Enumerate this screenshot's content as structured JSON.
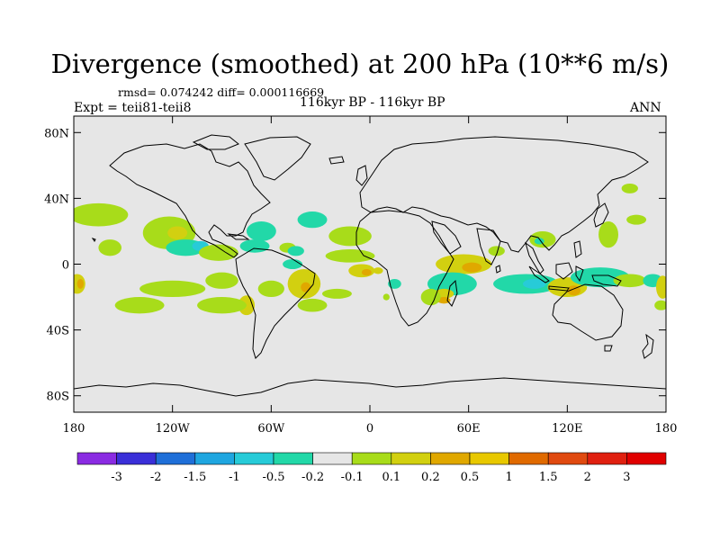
{
  "title": "Divergence (smoothed) at 200 hPa (10**6 m/s)",
  "stats": "rmsd= 0.074242 diff= 0.000116669",
  "experiment": "Expt = teii81-teii8",
  "period": "116kyr BP - 116kyr BP",
  "season": "ANN",
  "map": {
    "background_color": "#e6e6e6",
    "lat_labels": [
      "80N",
      "40N",
      "0",
      "40S",
      "80S"
    ],
    "lat_values": [
      80,
      40,
      0,
      -40,
      -80
    ],
    "lon_labels": [
      "180",
      "120W",
      "60W",
      "0",
      "60E",
      "120E",
      "180"
    ],
    "lon_values": [
      -180,
      -120,
      -60,
      0,
      60,
      120,
      180
    ],
    "lon_range": [
      -180,
      180
    ],
    "lat_range": [
      -90,
      90
    ]
  },
  "colorbar": {
    "colors": [
      "#8a2be2",
      "#3a2fd8",
      "#1f6fd8",
      "#1fa6e0",
      "#27cbd8",
      "#22d8a8",
      "#e6e6e6",
      "#a8dc1a",
      "#d2d010",
      "#e0a800",
      "#e8c800",
      "#e06a00",
      "#e04a10",
      "#e02010",
      "#e00000"
    ],
    "labels": [
      "-3",
      "-2",
      "-1.5",
      "-1",
      "-0.5",
      "-0.2",
      "-0.1",
      "0.1",
      "0.2",
      "0.5",
      "1",
      "1.5",
      "2",
      "3"
    ]
  },
  "anomalies": [
    {
      "lon": -165,
      "lat": 30,
      "rx": 18,
      "ry": 7,
      "level": "0.1"
    },
    {
      "lon": -122,
      "lat": 19,
      "rx": 16,
      "ry": 10,
      "level": "0.1"
    },
    {
      "lon": -117,
      "lat": 19,
      "rx": 6,
      "ry": 4,
      "level": "0.2"
    },
    {
      "lon": -158,
      "lat": 10,
      "rx": 7,
      "ry": 5,
      "level": "0.1"
    },
    {
      "lon": -112,
      "lat": 10,
      "rx": 12,
      "ry": 5,
      "level": "-0.2"
    },
    {
      "lon": -103,
      "lat": 11,
      "rx": 5,
      "ry": 3,
      "level": "-0.5"
    },
    {
      "lon": -92,
      "lat": 7,
      "rx": 12,
      "ry": 5,
      "level": "0.1"
    },
    {
      "lon": -66,
      "lat": 20,
      "rx": 9,
      "ry": 6,
      "level": "-0.2"
    },
    {
      "lon": -70,
      "lat": 11,
      "rx": 9,
      "ry": 4,
      "level": "-0.2"
    },
    {
      "lon": -50,
      "lat": 10,
      "rx": 5,
      "ry": 3,
      "level": "0.1"
    },
    {
      "lon": -178,
      "lat": -12,
      "rx": 5,
      "ry": 6,
      "level": "0.2"
    },
    {
      "lon": -176,
      "lat": -12,
      "rx": 2,
      "ry": 3,
      "level": "0.5"
    },
    {
      "lon": -90,
      "lat": -10,
      "rx": 10,
      "ry": 5,
      "level": "0.1"
    },
    {
      "lon": -120,
      "lat": -15,
      "rx": 20,
      "ry": 5,
      "level": "0.1"
    },
    {
      "lon": -75,
      "lat": -25,
      "rx": 5,
      "ry": 6,
      "level": "0.2"
    },
    {
      "lon": -60,
      "lat": -15,
      "rx": 8,
      "ry": 5,
      "level": "0.1"
    },
    {
      "lon": -40,
      "lat": -12,
      "rx": 10,
      "ry": 9,
      "level": "0.2"
    },
    {
      "lon": -39,
      "lat": -14,
      "rx": 3,
      "ry": 3,
      "level": "0.5"
    },
    {
      "lon": -47,
      "lat": 0,
      "rx": 6,
      "ry": 3,
      "level": "-0.2"
    },
    {
      "lon": -45,
      "lat": 8,
      "rx": 5,
      "ry": 3,
      "level": "-0.2"
    },
    {
      "lon": -35,
      "lat": 27,
      "rx": 9,
      "ry": 5,
      "level": "-0.2"
    },
    {
      "lon": -12,
      "lat": 17,
      "rx": 13,
      "ry": 6,
      "level": "0.1"
    },
    {
      "lon": -12,
      "lat": 5,
      "rx": 15,
      "ry": 4,
      "level": "0.1"
    },
    {
      "lon": -5,
      "lat": -4,
      "rx": 8,
      "ry": 4,
      "level": "0.2"
    },
    {
      "lon": -2,
      "lat": -5,
      "rx": 3,
      "ry": 2,
      "level": "0.5"
    },
    {
      "lon": 5,
      "lat": -4,
      "rx": 3,
      "ry": 2,
      "level": "0.2"
    },
    {
      "lon": 15,
      "lat": -12,
      "rx": 4,
      "ry": 3,
      "level": "-0.2"
    },
    {
      "lon": -20,
      "lat": -18,
      "rx": 9,
      "ry": 3,
      "level": "0.1"
    },
    {
      "lon": -140,
      "lat": -25,
      "rx": 15,
      "ry": 5,
      "level": "0.1"
    },
    {
      "lon": -90,
      "lat": -25,
      "rx": 15,
      "ry": 5,
      "level": "0.1"
    },
    {
      "lon": -35,
      "lat": -25,
      "rx": 9,
      "ry": 4,
      "level": "0.1"
    },
    {
      "lon": 57,
      "lat": 0,
      "rx": 17,
      "ry": 6,
      "level": "0.2"
    },
    {
      "lon": 62,
      "lat": -2,
      "rx": 6,
      "ry": 3,
      "level": "0.5"
    },
    {
      "lon": 50,
      "lat": -12,
      "rx": 15,
      "ry": 7,
      "level": "-0.2"
    },
    {
      "lon": 45,
      "lat": -18,
      "rx": 6,
      "ry": 3,
      "level": "0.2"
    },
    {
      "lon": 45,
      "lat": -22,
      "rx": 4,
      "ry": 2,
      "level": "0.5"
    },
    {
      "lon": 37,
      "lat": -20,
      "rx": 6,
      "ry": 5,
      "level": "0.1"
    },
    {
      "lon": 77,
      "lat": 8,
      "rx": 5,
      "ry": 3,
      "level": "0.1"
    },
    {
      "lon": 95,
      "lat": -12,
      "rx": 20,
      "ry": 6,
      "level": "-0.2"
    },
    {
      "lon": 100,
      "lat": -12,
      "rx": 7,
      "ry": 3,
      "level": "-0.5"
    },
    {
      "lon": 120,
      "lat": -14,
      "rx": 12,
      "ry": 6,
      "level": "0.2"
    },
    {
      "lon": 124,
      "lat": -16,
      "rx": 4,
      "ry": 3,
      "level": "0.5"
    },
    {
      "lon": 140,
      "lat": -8,
      "rx": 18,
      "ry": 6,
      "level": "-0.2"
    },
    {
      "lon": 158,
      "lat": -10,
      "rx": 10,
      "ry": 4,
      "level": "0.1"
    },
    {
      "lon": 172,
      "lat": -10,
      "rx": 6,
      "ry": 4,
      "level": "-0.2"
    },
    {
      "lon": 178,
      "lat": -14,
      "rx": 4,
      "ry": 7,
      "level": "0.2"
    },
    {
      "lon": 177,
      "lat": -25,
      "rx": 4,
      "ry": 3,
      "level": "0.1"
    },
    {
      "lon": 105,
      "lat": 15,
      "rx": 8,
      "ry": 5,
      "level": "0.1"
    },
    {
      "lon": 103,
      "lat": 14,
      "rx": 3,
      "ry": 2,
      "level": "-0.2"
    },
    {
      "lon": 145,
      "lat": 18,
      "rx": 6,
      "ry": 8,
      "level": "0.1"
    },
    {
      "lon": 162,
      "lat": 27,
      "rx": 6,
      "ry": 3,
      "level": "0.1"
    },
    {
      "lon": 158,
      "lat": 46,
      "rx": 5,
      "ry": 3,
      "level": "0.1"
    },
    {
      "lon": 10,
      "lat": -20,
      "rx": 2,
      "ry": 2,
      "level": "0.1"
    }
  ]
}
